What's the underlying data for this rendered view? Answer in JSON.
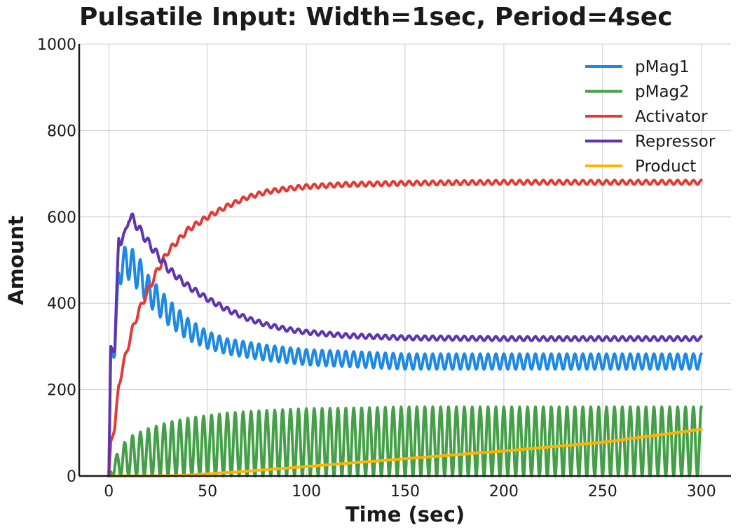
{
  "chart_data": {
    "type": "line",
    "title": "Pulsatile Input: Width=1sec, Period=4sec",
    "xlabel": "Time (sec)",
    "ylabel": "Amount",
    "xlim": [
      -15,
      315
    ],
    "ylim": [
      0,
      1000
    ],
    "xticks": [
      0,
      50,
      100,
      150,
      200,
      250,
      300
    ],
    "yticks": [
      0,
      200,
      400,
      600,
      800,
      1000
    ],
    "grid": true,
    "legend_position": "top-right",
    "pulse_period": 4,
    "series": [
      {
        "name": "pMag1",
        "color": "#1e88e5",
        "x": [
          0,
          1,
          3,
          5,
          9,
          15,
          20,
          30,
          40,
          50,
          60,
          80,
          100,
          150,
          200,
          250,
          300
        ],
        "values": [
          0,
          300,
          280,
          470,
          500,
          470,
          430,
          380,
          340,
          315,
          300,
          285,
          275,
          265,
          265,
          265,
          265
        ],
        "oscillation_amplitude": [
          0,
          0,
          20,
          30,
          40,
          40,
          35,
          30,
          25,
          20,
          18,
          18,
          18,
          18,
          18,
          18,
          18
        ]
      },
      {
        "name": "pMag2",
        "color": "#43a047",
        "x": [
          0,
          1,
          5,
          10,
          20,
          30,
          40,
          50,
          60,
          80,
          100,
          130,
          150,
          200,
          250,
          300
        ],
        "values": [
          0,
          10,
          30,
          45,
          55,
          62,
          67,
          70,
          73,
          76,
          78,
          79,
          80,
          80,
          80,
          80
        ],
        "oscillation_amplitude": [
          0,
          10,
          30,
          45,
          55,
          62,
          67,
          70,
          73,
          76,
          78,
          79,
          80,
          80,
          80,
          80
        ]
      },
      {
        "name": "Activator",
        "color": "#e53935",
        "x": [
          0,
          1,
          3,
          5,
          8,
          12,
          15,
          20,
          25,
          30,
          40,
          50,
          60,
          70,
          80,
          90,
          100,
          120,
          150,
          200,
          250,
          300
        ],
        "values": [
          0,
          80,
          110,
          210,
          270,
          340,
          380,
          430,
          480,
          520,
          570,
          600,
          625,
          645,
          658,
          665,
          670,
          675,
          678,
          680,
          680,
          680
        ],
        "oscillation_amplitude": [
          0,
          0,
          5,
          8,
          8,
          8,
          8,
          8,
          8,
          7,
          6,
          6,
          5,
          5,
          5,
          5,
          5,
          5,
          5,
          5,
          5,
          5
        ]
      },
      {
        "name": "Repressor",
        "color": "#5e35b1",
        "x": [
          0,
          1,
          3,
          5,
          8,
          10,
          12,
          15,
          20,
          25,
          30,
          40,
          50,
          60,
          70,
          80,
          90,
          100,
          120,
          150,
          200,
          250,
          300
        ],
        "values": [
          0,
          300,
          290,
          550,
          550,
          600,
          595,
          575,
          540,
          510,
          480,
          440,
          410,
          385,
          365,
          350,
          340,
          333,
          325,
          320,
          318,
          318,
          318
        ],
        "oscillation_amplitude": [
          0,
          0,
          10,
          15,
          15,
          12,
          12,
          10,
          10,
          9,
          8,
          7,
          6,
          6,
          5,
          5,
          5,
          5,
          5,
          5,
          5,
          5,
          5
        ]
      },
      {
        "name": "Product",
        "color": "#ffb300",
        "x": [
          0,
          20,
          30,
          40,
          50,
          60,
          70,
          80,
          90,
          100,
          150,
          200,
          250,
          300
        ],
        "values": [
          0,
          0,
          0.5,
          2,
          5,
          8,
          11,
          15,
          18,
          22,
          40,
          58,
          78,
          108
        ],
        "oscillation_amplitude": [
          0,
          0,
          0,
          0,
          0,
          0,
          0,
          0,
          0,
          0,
          0,
          0,
          0,
          0
        ]
      }
    ]
  }
}
